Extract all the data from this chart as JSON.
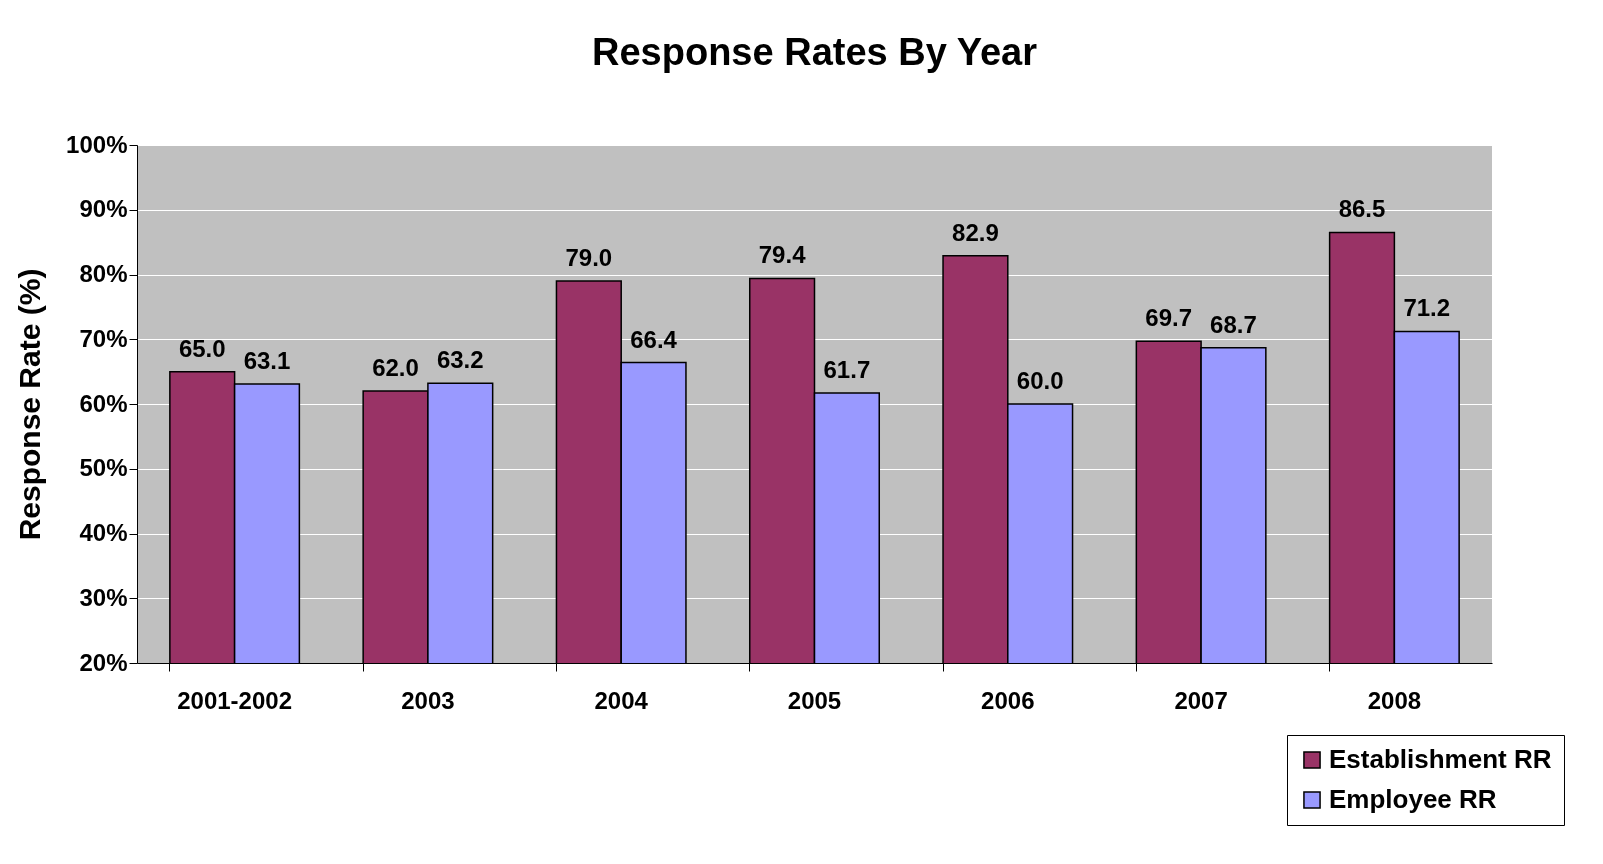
{
  "chart_data": {
    "type": "bar",
    "title": "Response Rates By Year",
    "ylabel": "Response Rate (%)",
    "categories": [
      "2001-2002",
      "2003",
      "2004",
      "2005",
      "2006",
      "2007",
      "2008"
    ],
    "series": [
      {
        "name": "Establishment RR",
        "color": "#993366",
        "values": [
          65.0,
          62.0,
          79.0,
          79.4,
          82.9,
          69.7,
          86.5
        ],
        "value_labels": [
          "65.0",
          "62.0",
          "79.0",
          "79.4",
          "82.9",
          "69.7",
          "86.5"
        ]
      },
      {
        "name": "Employee RR",
        "color": "#9999ff",
        "values": [
          63.1,
          63.2,
          66.4,
          61.7,
          60.0,
          68.7,
          71.2
        ],
        "value_labels": [
          "63.1",
          "63.2",
          "66.4",
          "61.7",
          "60.0",
          "68.7",
          "71.2"
        ]
      }
    ],
    "ylim": [
      20,
      100
    ],
    "yticks": [
      {
        "value": 20,
        "label": "20%"
      },
      {
        "value": 30,
        "label": "30%"
      },
      {
        "value": 40,
        "label": "40%"
      },
      {
        "value": 50,
        "label": "50%"
      },
      {
        "value": 60,
        "label": "60%"
      },
      {
        "value": 70,
        "label": "70%"
      },
      {
        "value": 80,
        "label": "80%"
      },
      {
        "value": 90,
        "label": "90%"
      },
      {
        "value": 100,
        "label": "100%"
      }
    ],
    "grid": "y",
    "legend": "bottom right"
  }
}
